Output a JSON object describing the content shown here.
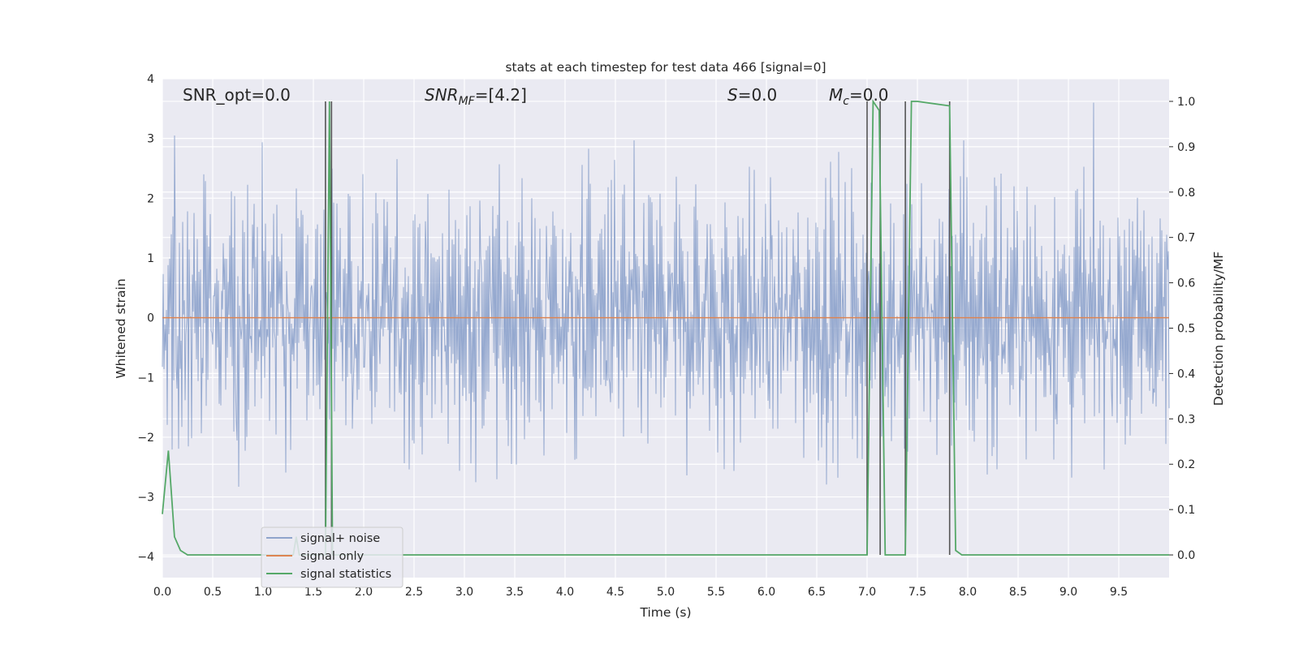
{
  "chart_data": {
    "type": "line",
    "title": "stats at each timestep for test data 466 [signal=0]",
    "xlabel": "Time (s)",
    "ylabel_left": "Whitened strain",
    "ylabel_right": "Detection probability/MF",
    "xlim": [
      0.0,
      10.0
    ],
    "ylim_left": [
      -4.35,
      4.0
    ],
    "ylim_right": [
      -0.05,
      1.05
    ],
    "x_ticks": [
      "0.0",
      "0.5",
      "1.0",
      "1.5",
      "2.0",
      "2.5",
      "3.0",
      "3.5",
      "4.0",
      "4.5",
      "5.0",
      "5.5",
      "6.0",
      "6.5",
      "7.0",
      "7.5",
      "8.0",
      "8.5",
      "9.0",
      "9.5"
    ],
    "y_ticks_left": [
      "4",
      "3",
      "2",
      "1",
      "0",
      "−1",
      "−2",
      "−3",
      "−4"
    ],
    "y_ticks_right": [
      "1.0",
      "0.9",
      "0.8",
      "0.7",
      "0.6",
      "0.5",
      "0.4",
      "0.3",
      "0.2",
      "0.1",
      "0.0"
    ],
    "grid": true,
    "legend_position": "lower-left",
    "annotations": {
      "snr_opt": "SNR_opt=0.0",
      "snr_mf_base": "SNR",
      "snr_mf_sub": "MF",
      "snr_mf_value": "=[4.2]",
      "s_var": "S",
      "s_value": "=0.0",
      "mc_base": "M",
      "mc_sub": "c",
      "mc_value": "=0.0"
    },
    "series": [
      {
        "name": "signal+ noise",
        "axis": "left",
        "color": "#8fa4cc",
        "noise_band": {
          "typical_amplitude": 1.6,
          "max_peak": 3.6,
          "min_trough": -3.9
        }
      },
      {
        "name": "signal only",
        "axis": "left",
        "color": "#dd8452",
        "x": [
          0.0,
          10.0
        ],
        "y": [
          0.0,
          0.0
        ]
      },
      {
        "name": "signal statistics",
        "axis": "right",
        "color": "#55a868",
        "x": [
          0.0,
          0.06,
          0.12,
          0.18,
          0.25,
          0.3,
          1.3,
          1.33,
          1.36,
          1.62,
          1.66,
          1.69,
          1.72,
          1.75,
          7.0,
          7.06,
          7.12,
          7.18,
          7.38,
          7.44,
          7.5,
          7.82,
          7.88,
          7.94,
          8.0,
          10.0
        ],
        "y": [
          0.09,
          0.23,
          0.04,
          0.01,
          0.0,
          0.0,
          0.0,
          0.04,
          0.0,
          0.0,
          1.0,
          0.0,
          0.0,
          0.0,
          0.0,
          1.0,
          0.98,
          0.0,
          0.0,
          1.0,
          1.0,
          0.99,
          0.01,
          0.0,
          0.0,
          0.0
        ]
      }
    ],
    "vertical_markers_x": [
      1.62,
      1.68,
      7.0,
      7.13,
      7.38,
      7.82
    ],
    "colors": {
      "axes_bg": "#eaeaf2",
      "grid": "#ffffff",
      "text": "#262626",
      "marker": "#555555"
    }
  }
}
